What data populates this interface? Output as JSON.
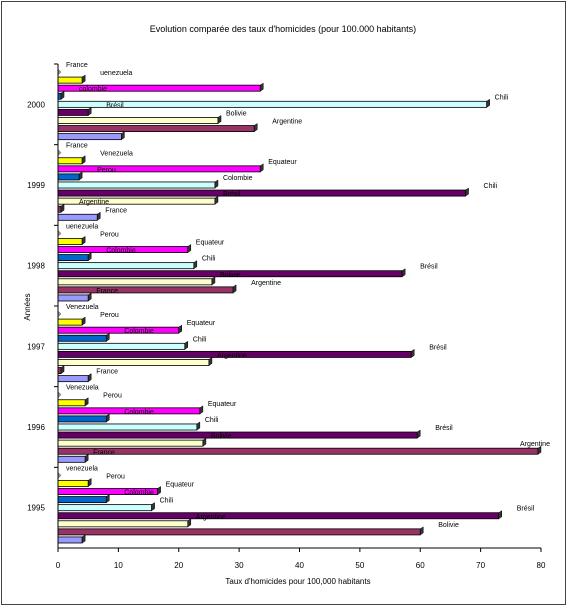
{
  "chart_data": {
    "type": "bar",
    "orientation": "horizontal",
    "title": "Evolution comparée des taux d'homicides (pour 100.000 habitants)",
    "xlabel": "Taux d'homicides pour 100,000 habitants",
    "ylabel": "Années",
    "xlim": [
      0,
      80
    ],
    "xticks": [
      "0",
      "10",
      "20",
      "30",
      "40",
      "50",
      "60",
      "70",
      "80"
    ],
    "grid": false,
    "legend": "none",
    "groups": [
      {
        "year": "1995",
        "bars": [
          {
            "name": "Argentine",
            "value": 4,
            "label": ""
          },
          {
            "name": "Bolivie",
            "value": 60,
            "label": "Bolivie"
          },
          {
            "name": "Brésil",
            "value": 21.5,
            "label": "Argentine"
          },
          {
            "name": "Colombie",
            "value": 73,
            "label": "Brésil"
          },
          {
            "name": "Chili",
            "value": 15.5,
            "label": "Chili"
          },
          {
            "name": "Équateur",
            "value": 8,
            "label": "Colombie"
          },
          {
            "name": "Pérou",
            "value": 16.5,
            "label": "Equateur"
          },
          {
            "name": "Venezuela",
            "value": 5,
            "label": "Perou"
          },
          {
            "name": "France",
            "value": 0,
            "label": "venezuela"
          }
        ]
      },
      {
        "year": "1996",
        "bars": [
          {
            "name": "Argentine",
            "value": 4.5,
            "label": "France"
          },
          {
            "name": "Bolivie",
            "value": 79.5,
            "label": "Argentine"
          },
          {
            "name": "Brésil",
            "value": 24,
            "label": "Bolivie"
          },
          {
            "name": "Colombie",
            "value": 59.5,
            "label": "Brésil"
          },
          {
            "name": "Chili",
            "value": 23,
            "label": "Chili"
          },
          {
            "name": "Équateur",
            "value": 8,
            "label": "Colombie"
          },
          {
            "name": "Pérou",
            "value": 23.5,
            "label": "Equateur"
          },
          {
            "name": "Venezuela",
            "value": 4.5,
            "label": "Perou"
          },
          {
            "name": "France",
            "value": 0,
            "label": "Venezuela"
          }
        ]
      },
      {
        "year": "1997",
        "bars": [
          {
            "name": "Argentine",
            "value": 5,
            "label": "France"
          },
          {
            "name": "Bolivie",
            "value": 0.5,
            "label": ""
          },
          {
            "name": "Brésil",
            "value": 25,
            "label": "Argentine"
          },
          {
            "name": "Colombie",
            "value": 58.5,
            "label": "Brésil"
          },
          {
            "name": "Chili",
            "value": 21,
            "label": "Chili"
          },
          {
            "name": "Équateur",
            "value": 8,
            "label": "Colombie"
          },
          {
            "name": "Pérou",
            "value": 20,
            "label": "Equateur"
          },
          {
            "name": "Venezuela",
            "value": 4,
            "label": "Perou"
          },
          {
            "name": "France",
            "value": 0,
            "label": "Venezuela"
          }
        ]
      },
      {
        "year": "1998",
        "bars": [
          {
            "name": "Argentine",
            "value": 5,
            "label": "France"
          },
          {
            "name": "Bolivie",
            "value": 29,
            "label": "Argentine"
          },
          {
            "name": "Brésil",
            "value": 25.5,
            "label": "Bolivie"
          },
          {
            "name": "Colombie",
            "value": 57,
            "label": "Brésil"
          },
          {
            "name": "Chili",
            "value": 22.5,
            "label": "Chili"
          },
          {
            "name": "Équateur",
            "value": 5,
            "label": "Colombie"
          },
          {
            "name": "Pérou",
            "value": 21.5,
            "label": "Equateur"
          },
          {
            "name": "Venezuela",
            "value": 4,
            "label": "Perou"
          },
          {
            "name": "France",
            "value": 0,
            "label": "uenezuela"
          }
        ]
      },
      {
        "year": "1999",
        "bars": [
          {
            "name": "Argentine",
            "value": 6.5,
            "label": "France"
          },
          {
            "name": "Bolivie",
            "value": 0.5,
            "label": "Argentine"
          },
          {
            "name": "Brésil",
            "value": 26,
            "label": "Brésil"
          },
          {
            "name": "Colombie",
            "value": 67.5,
            "label": "Chili"
          },
          {
            "name": "Chili",
            "value": 26,
            "label": "Colombie"
          },
          {
            "name": "Équateur",
            "value": 3.5,
            "label": "Perou"
          },
          {
            "name": "Pérou",
            "value": 33.5,
            "label": "Equateur"
          },
          {
            "name": "Venezuela",
            "value": 4,
            "label": "Venezuela"
          },
          {
            "name": "France",
            "value": 0,
            "label": "France"
          }
        ]
      },
      {
        "year": "2000",
        "bars": [
          {
            "name": "Argentine",
            "value": 10.5,
            "label": ""
          },
          {
            "name": "Bolivie",
            "value": 32.5,
            "label": "Argentine"
          },
          {
            "name": "Brésil",
            "value": 26.5,
            "label": "Bolivie"
          },
          {
            "name": "Colombie",
            "value": 5,
            "label": "Brésil"
          },
          {
            "name": "Chili",
            "value": 71,
            "label": "Chili"
          },
          {
            "name": "Équateur",
            "value": 0.5,
            "label": "colombie"
          },
          {
            "name": "Pérou",
            "value": 33.5,
            "label": ""
          },
          {
            "name": "Venezuela",
            "value": 4,
            "label": "uenezuela"
          },
          {
            "name": "France",
            "value": 0,
            "label": "France"
          }
        ]
      }
    ],
    "colors": {
      "Argentine": "#9999ff",
      "Bolivie": "#993366",
      "Brésil": "#ffffcc",
      "Colombie": "#660066",
      "Chili": "#ccffff",
      "Équateur": "#0066cc",
      "Pérou": "#ff00ff",
      "Venezuela": "#ffff00",
      "France": "#c0c0c0"
    }
  }
}
